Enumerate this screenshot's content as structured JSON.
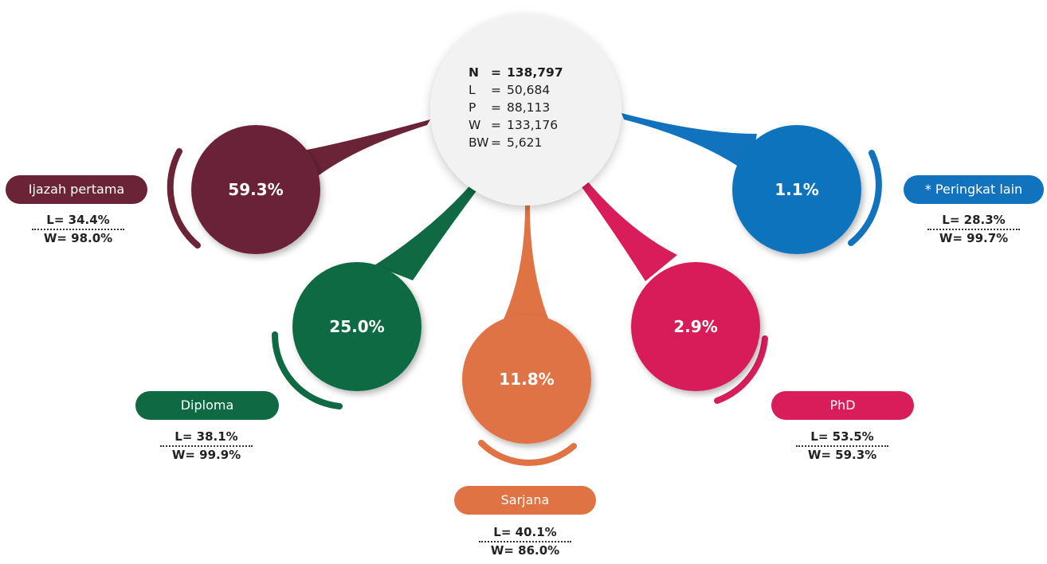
{
  "summary": {
    "rows": [
      {
        "key": "N",
        "value": "138,797",
        "bold": true
      },
      {
        "key": "L",
        "value": "50,684",
        "bold": false
      },
      {
        "key": "P",
        "value": "88,113",
        "bold": false
      },
      {
        "key": "W",
        "value": "133,176",
        "bold": false
      },
      {
        "key": "BW",
        "value": "5,621",
        "bold": false
      }
    ]
  },
  "categories": [
    {
      "name": "ijazah-pertama",
      "label": "Ijazah pertama",
      "value": "59.3%",
      "l": "L= 34.4%",
      "w": "W= 98.0%",
      "color": "#6b2437"
    },
    {
      "name": "diploma",
      "label": "Diploma",
      "value": "25.0%",
      "l": "L= 38.1%",
      "w": "W= 99.9%",
      "color": "#0f6a43"
    },
    {
      "name": "sarjana",
      "label": "Sarjana",
      "value": "11.8%",
      "l": "L= 40.1%",
      "w": "W= 86.0%",
      "color": "#e07344"
    },
    {
      "name": "phd",
      "label": "PhD",
      "value": "2.9%",
      "l": "L= 53.5%",
      "w": "W= 59.3%",
      "color": "#d81d5a"
    },
    {
      "name": "peringkat-lain",
      "label": "* Peringkat lain",
      "value": "1.1%",
      "l": "L= 28.3%",
      "w": "W= 99.7%",
      "color": "#1173bd"
    }
  ]
}
